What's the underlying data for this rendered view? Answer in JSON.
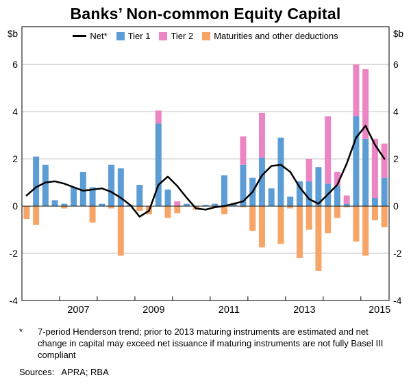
{
  "title": "Banks’ Non-common Equity Capital",
  "axis_unit_left": "$b",
  "axis_unit_right": "$b",
  "legend": [
    {
      "label": "Net*",
      "type": "line",
      "color": "#000000"
    },
    {
      "label": "Tier 1",
      "type": "box",
      "color": "#5D9DD5"
    },
    {
      "label": "Tier 2",
      "type": "box",
      "color": "#EC85C4"
    },
    {
      "label": "Maturities and other deductions",
      "type": "box",
      "color": "#F6A567"
    }
  ],
  "footnote_marker": "*",
  "footnote": "7-period Henderson trend; prior to 2013 maturing instruments are estimated and net change in capital may exceed net issuance if maturing instruments are not fully Basel III compliant",
  "sources": "Sources:   APRA; RBA",
  "chart_data": {
    "type": "bar",
    "stacked": true,
    "title": "Banks’ Non-common Equity Capital",
    "ylabel": "$b",
    "ylim": [
      -4,
      6
    ],
    "yticks": [
      -4,
      -2,
      0,
      2,
      4,
      6
    ],
    "grid": true,
    "legend_position": "top",
    "xticklabels": [
      "2007",
      "2009",
      "2011",
      "2013",
      "2015"
    ],
    "x": [
      "2006Q1",
      "2006Q2",
      "2006Q3",
      "2006Q4",
      "2007Q1",
      "2007Q2",
      "2007Q3",
      "2007Q4",
      "2008Q1",
      "2008Q2",
      "2008Q3",
      "2008Q4",
      "2009Q1",
      "2009Q2",
      "2009Q3",
      "2009Q4",
      "2010Q1",
      "2010Q2",
      "2010Q3",
      "2010Q4",
      "2011Q1",
      "2011Q2",
      "2011Q3",
      "2011Q4",
      "2012Q1",
      "2012Q2",
      "2012Q3",
      "2012Q4",
      "2013Q1",
      "2013Q2",
      "2013Q3",
      "2013Q4",
      "2014Q1",
      "2014Q2",
      "2014Q3",
      "2014Q4",
      "2015Q1",
      "2015Q2",
      "2015Q3"
    ],
    "series": [
      {
        "name": "Tier 1",
        "color": "#5D9DD5",
        "values": [
          0,
          2.1,
          1.75,
          0.25,
          0.1,
          0.8,
          1.45,
          0.8,
          0.1,
          1.75,
          1.6,
          0.05,
          0.9,
          0,
          3.5,
          0.7,
          0,
          0.1,
          0,
          0.05,
          0.1,
          1.3,
          0.1,
          1.75,
          1.2,
          2.05,
          0.75,
          2.9,
          0.4,
          1.05,
          1.05,
          1.65,
          0.95,
          0.85,
          0.1,
          3.8,
          2.85,
          0.35,
          1.2
        ]
      },
      {
        "name": "Tier 2",
        "color": "#EC85C4",
        "values": [
          0,
          0,
          0,
          0,
          0,
          0,
          0,
          0,
          0,
          0,
          0,
          0,
          0,
          0,
          0.55,
          0,
          0.2,
          0,
          0,
          0,
          0,
          0,
          0,
          1.2,
          0,
          1.9,
          0,
          0,
          0,
          0,
          0.95,
          0,
          2.85,
          0.6,
          0.35,
          2.2,
          2.95,
          2.5,
          1.45
        ]
      },
      {
        "name": "Maturities and other deductions",
        "color": "#F6A567",
        "values": [
          -0.55,
          -0.8,
          0,
          0,
          -0.1,
          0,
          0,
          -0.7,
          0,
          -0.1,
          -2.1,
          0,
          -0.2,
          -0.35,
          0,
          -0.5,
          -0.3,
          0,
          -0.15,
          0,
          -0.05,
          -0.35,
          0,
          -0.05,
          -1.05,
          -1.75,
          0,
          -1.6,
          -0.1,
          -2.2,
          -1.0,
          -2.75,
          -1.15,
          -0.5,
          -0.05,
          -1.5,
          -2.1,
          -0.6,
          -0.9
        ]
      }
    ],
    "line_series": {
      "name": "Net*",
      "color": "#000000",
      "values": [
        0.45,
        0.8,
        1.0,
        1.05,
        0.95,
        0.8,
        0.65,
        0.7,
        0.75,
        0.6,
        0.35,
        0.05,
        -0.45,
        -0.2,
        0.9,
        1.25,
        0.85,
        0.35,
        -0.1,
        -0.15,
        -0.05,
        0.0,
        0.1,
        0.2,
        0.6,
        1.3,
        1.7,
        1.75,
        1.45,
        0.8,
        0.3,
        0.1,
        0.5,
        0.9,
        1.8,
        2.9,
        3.4,
        2.6,
        2.0
      ]
    }
  }
}
